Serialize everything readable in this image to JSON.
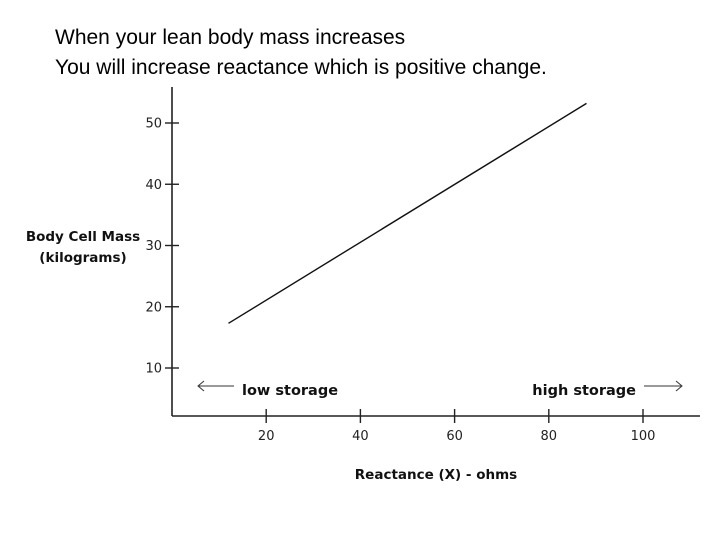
{
  "page": {
    "headline_line1": "When your lean body mass increases",
    "headline_line2": "You will increase reactance which is positive change."
  },
  "chart_data": {
    "type": "line",
    "xlabel": "Reactance (X) - ohms",
    "ylabel_line1": "Body Cell Mass",
    "ylabel_line2": "(kilograms)",
    "x_ticks": [
      20,
      40,
      60,
      80,
      100
    ],
    "y_ticks": [
      10,
      20,
      30,
      40,
      50
    ],
    "xlim": [
      0,
      113
    ],
    "ylim": [
      6.5,
      56.5
    ],
    "series": [
      {
        "x": [
          12,
          88
        ],
        "y": [
          17.3,
          53.2
        ]
      }
    ],
    "annotations": {
      "low_label": "low storage",
      "high_label": "high storage"
    },
    "grid": false,
    "colors": {
      "line": "#111111",
      "axis": "#222222"
    }
  }
}
